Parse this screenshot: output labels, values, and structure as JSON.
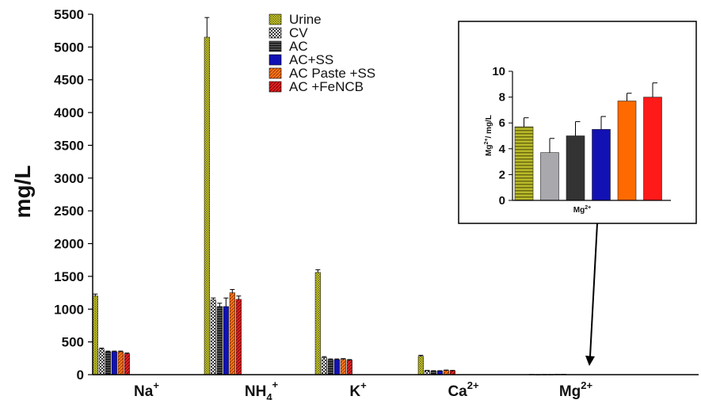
{
  "chart_data": [
    {
      "type": "bar",
      "ylabel": "mg/L",
      "ylim": [
        0,
        5500
      ],
      "yticks": [
        0,
        500,
        1000,
        1500,
        2000,
        2500,
        3000,
        3500,
        4000,
        4500,
        5000,
        5500
      ],
      "categories": [
        {
          "base": "Na",
          "sup": "+",
          "sub": ""
        },
        {
          "base": "NH",
          "sub": "4",
          "sup": "+"
        },
        {
          "base": "K",
          "sup": "+",
          "sub": ""
        },
        {
          "base": "Ca",
          "sup": "2+",
          "sub": ""
        },
        {
          "base": "Mg",
          "sup": "2+",
          "sub": ""
        }
      ],
      "legend_position": "top-center",
      "series": [
        {
          "name": "Urine",
          "color": "#d4d42a",
          "pattern": "crosshatch-yellow",
          "values": [
            1200,
            5150,
            1560,
            280,
            6
          ],
          "errors": [
            30,
            300,
            40,
            15,
            0
          ]
        },
        {
          "name": "CV",
          "color": "#8a8a8a",
          "pattern": "checker",
          "values": [
            390,
            1140,
            260,
            60,
            4
          ],
          "errors": [
            15,
            30,
            15,
            5,
            0
          ]
        },
        {
          "name": "AC",
          "color": "#333333",
          "pattern": "hlines-dark",
          "values": [
            350,
            1040,
            230,
            55,
            5
          ],
          "errors": [
            10,
            50,
            10,
            5,
            0
          ]
        },
        {
          "name": "AC+SS",
          "color": "#1212b4",
          "pattern": "solid-blue",
          "values": [
            350,
            1040,
            230,
            55,
            5
          ],
          "errors": [
            10,
            130,
            10,
            5,
            0
          ]
        },
        {
          "name": "AC Paste +SS",
          "color": "#ff6a00",
          "pattern": "diag-orange",
          "values": [
            350,
            1250,
            235,
            65,
            7
          ],
          "errors": [
            10,
            50,
            10,
            5,
            0
          ]
        },
        {
          "name": "AC +FeNCB",
          "color": "#dd1f1f",
          "pattern": "diag-red",
          "values": [
            320,
            1150,
            220,
            60,
            8
          ],
          "errors": [
            10,
            50,
            10,
            5,
            0
          ]
        }
      ]
    },
    {
      "type": "bar",
      "inset": true,
      "ylabel": {
        "base": "Mg",
        "sup": "2+",
        "rest": "/ mg/L"
      },
      "xlabel": {
        "base": "Mg",
        "sup": "2+"
      },
      "ylim": [
        0,
        10
      ],
      "yticks": [
        0,
        2,
        4,
        6,
        8,
        10
      ],
      "values": [
        5.7,
        3.7,
        5.0,
        5.5,
        7.7,
        8.0
      ],
      "errors": [
        0.7,
        1.1,
        1.1,
        1.0,
        0.6,
        1.1
      ],
      "colors": [
        "#a3a320",
        "#a9a9ad",
        "#333333",
        "#1212b4",
        "#ff6a00",
        "#ff1a1a"
      ],
      "patterns": [
        "hlines-olive",
        "solid",
        "solid",
        "solid",
        "solid",
        "solid"
      ]
    }
  ]
}
